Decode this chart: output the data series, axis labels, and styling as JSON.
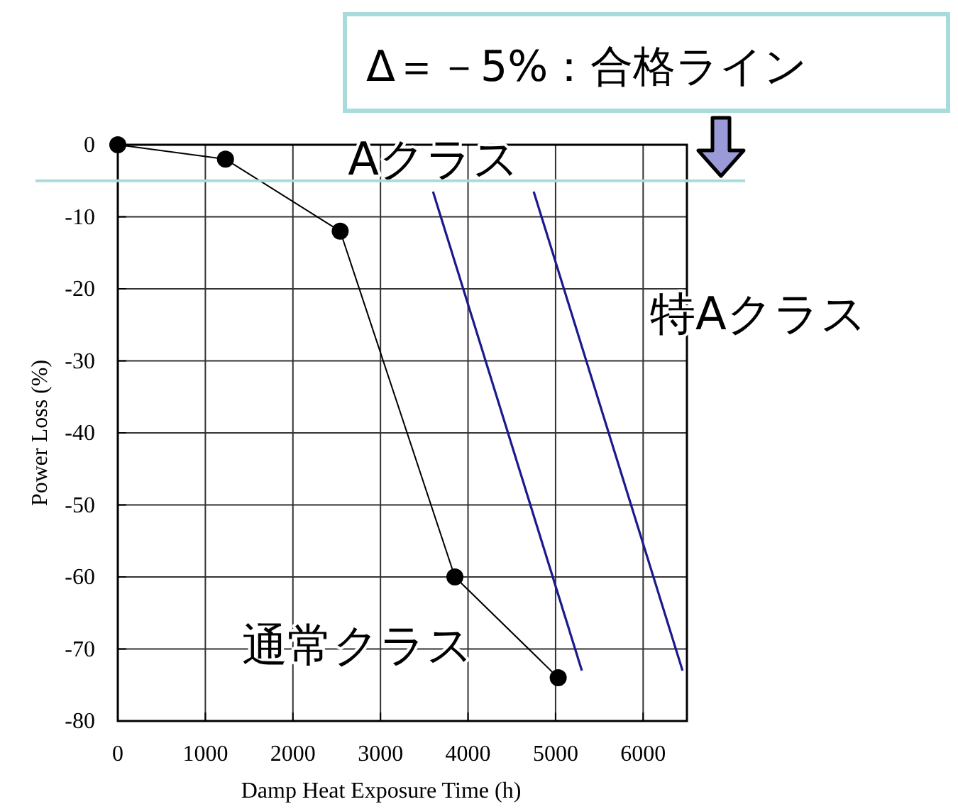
{
  "chart_data": {
    "type": "line",
    "xlabel": "Damp Heat Exposure Time (h)",
    "ylabel": "Power Loss (%)",
    "xlim": [
      0,
      6500
    ],
    "xticks": [
      0,
      1000,
      2000,
      3000,
      4000,
      5000,
      6000
    ],
    "ylim": [
      -80,
      0
    ],
    "yticks": [
      0,
      -10,
      -20,
      -30,
      -40,
      -50,
      -60,
      -70,
      -80
    ],
    "grid": true,
    "series": [
      {
        "name": "通常クラス",
        "color": "#000000",
        "marker": "circle",
        "x": [
          0,
          1230,
          2540,
          3850,
          5030
        ],
        "values": [
          0,
          -2,
          -12,
          -60,
          -74
        ]
      },
      {
        "name": "Aクラス",
        "color": "#1a1a8c",
        "marker": "none",
        "x": [
          3600,
          5300
        ],
        "values": [
          -6.5,
          -73
        ]
      },
      {
        "name": "特Aクラス",
        "color": "#1a1a8c",
        "marker": "none",
        "x": [
          4750,
          6450
        ],
        "values": [
          -6.5,
          -73
        ]
      }
    ],
    "ref_lines": [
      {
        "axis": "y",
        "value": -5,
        "label": "Δ＝－5%：合格ライン",
        "color": "#a8dcdc"
      }
    ]
  }
}
